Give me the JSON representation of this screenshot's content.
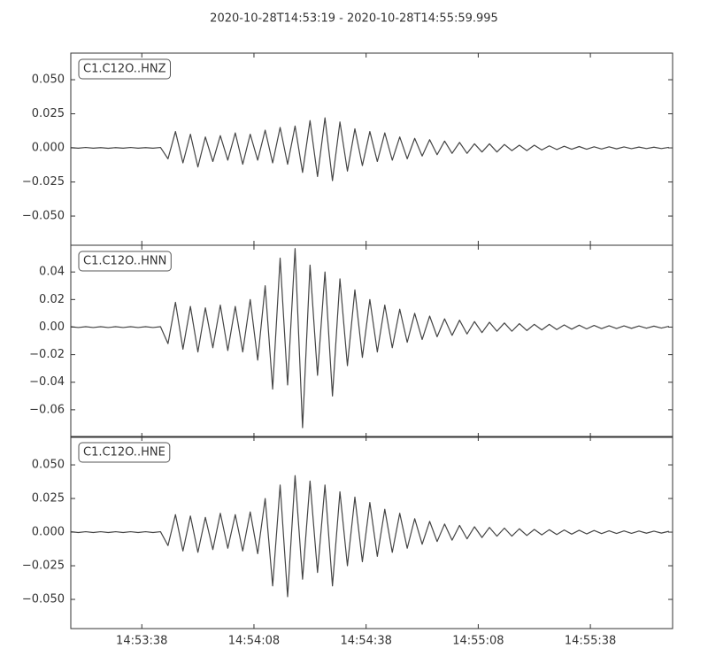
{
  "chart_data": {
    "type": "line",
    "title": "2020-10-28T14:53:19  -  2020-10-28T14:55:59.995",
    "xlim": [
      "14:53:19",
      "14:55:59.995"
    ],
    "xticks": [
      "14:53:38",
      "14:54:08",
      "14:54:38",
      "14:55:08",
      "14:55:38"
    ],
    "x": [
      "14:53:19",
      "14:53:21",
      "14:53:23",
      "14:53:25",
      "14:53:27",
      "14:53:29",
      "14:53:31",
      "14:53:33",
      "14:53:35",
      "14:53:37",
      "14:53:39",
      "14:53:41",
      "14:53:43",
      "14:53:45",
      "14:53:47",
      "14:53:49",
      "14:53:51",
      "14:53:53",
      "14:53:55",
      "14:53:57",
      "14:53:59",
      "14:54:01",
      "14:54:03",
      "14:54:05",
      "14:54:07",
      "14:54:09",
      "14:54:11",
      "14:54:13",
      "14:54:15",
      "14:54:17",
      "14:54:19",
      "14:54:21",
      "14:54:23",
      "14:54:25",
      "14:54:27",
      "14:54:29",
      "14:54:31",
      "14:54:33",
      "14:54:35",
      "14:54:37",
      "14:54:39",
      "14:54:41",
      "14:54:43",
      "14:54:45",
      "14:54:47",
      "14:54:49",
      "14:54:51",
      "14:54:53",
      "14:54:55",
      "14:54:57",
      "14:54:59",
      "14:55:01",
      "14:55:03",
      "14:55:05",
      "14:55:07",
      "14:55:09",
      "14:55:11",
      "14:55:13",
      "14:55:15",
      "14:55:17",
      "14:55:19",
      "14:55:21",
      "14:55:23",
      "14:55:25",
      "14:55:27",
      "14:55:29",
      "14:55:31",
      "14:55:33",
      "14:55:35",
      "14:55:37",
      "14:55:39",
      "14:55:41",
      "14:55:43",
      "14:55:45",
      "14:55:47",
      "14:55:49",
      "14:55:51",
      "14:55:53",
      "14:55:55",
      "14:55:57",
      "14:55:59"
    ],
    "panels": [
      {
        "label": "C1.C12O..HNZ",
        "color": "#444444",
        "ylim": [
          -0.0714,
          0.0695
        ],
        "yticks": [
          {
            "value": -0.05,
            "label": "−0.050"
          },
          {
            "value": -0.025,
            "label": "−0.025"
          },
          {
            "value": 0,
            "label": "0.000"
          },
          {
            "value": 0.025,
            "label": "0.025"
          },
          {
            "value": 0.05,
            "label": "0.050"
          }
        ],
        "values": [
          0.0002,
          -0.0002,
          0.0003,
          -0.0002,
          0.0002,
          -0.0003,
          0.0002,
          -0.0002,
          0.0003,
          -0.0002,
          0.0002,
          -0.0002,
          0.0003,
          -0.008,
          0.012,
          -0.011,
          0.01,
          -0.014,
          0.008,
          -0.01,
          0.009,
          -0.009,
          0.011,
          -0.012,
          0.01,
          -0.009,
          0.013,
          -0.011,
          0.015,
          -0.012,
          0.016,
          -0.018,
          0.02,
          -0.021,
          0.022,
          -0.024,
          0.019,
          -0.017,
          0.014,
          -0.013,
          0.012,
          -0.01,
          0.011,
          -0.009,
          0.008,
          -0.008,
          0.007,
          -0.006,
          0.006,
          -0.005,
          0.005,
          -0.004,
          0.004,
          -0.004,
          0.003,
          -0.003,
          0.003,
          -0.003,
          0.0025,
          -0.002,
          0.002,
          -0.002,
          0.002,
          -0.0015,
          0.0015,
          -0.0012,
          0.0012,
          -0.001,
          0.001,
          -0.001,
          0.0008,
          -0.0008,
          0.0008,
          -0.0007,
          0.0007,
          -0.0006,
          0.0006,
          -0.0005,
          0.0005,
          -0.0005,
          0.0004
        ]
      },
      {
        "label": "C1.C12O..HNN",
        "color": "#444444",
        "ylim": [
          -0.08,
          0.0594
        ],
        "yticks": [
          {
            "value": -0.06,
            "label": "−0.06"
          },
          {
            "value": -0.04,
            "label": "−0.04"
          },
          {
            "value": -0.02,
            "label": "−0.02"
          },
          {
            "value": 0,
            "label": "0.00"
          },
          0.02,
          0.04
        ],
        "values": [
          0.0003,
          -0.0003,
          0.0003,
          -0.0003,
          0.0003,
          -0.0003,
          0.0003,
          -0.0003,
          0.0003,
          -0.0003,
          0.0003,
          -0.0003,
          0.0003,
          -0.012,
          0.018,
          -0.016,
          0.015,
          -0.018,
          0.014,
          -0.015,
          0.016,
          -0.017,
          0.015,
          -0.018,
          0.02,
          -0.024,
          0.03,
          -0.045,
          0.05,
          -0.042,
          0.057,
          -0.073,
          0.045,
          -0.035,
          0.04,
          -0.05,
          0.035,
          -0.028,
          0.027,
          -0.022,
          0.02,
          -0.018,
          0.016,
          -0.015,
          0.013,
          -0.011,
          0.01,
          -0.009,
          0.008,
          -0.007,
          0.006,
          -0.006,
          0.005,
          -0.005,
          0.004,
          -0.004,
          0.0035,
          -0.003,
          0.003,
          -0.003,
          0.0025,
          -0.0025,
          0.002,
          -0.002,
          0.002,
          -0.0018,
          0.0016,
          -0.0015,
          0.0014,
          -0.0013,
          0.0012,
          -0.0011,
          0.001,
          -0.001,
          0.0009,
          -0.0009,
          0.0008,
          -0.0008,
          0.0007,
          -0.0007,
          0.0006
        ]
      },
      {
        "label": "C1.C12O..HNE",
        "color": "#444444",
        "ylim": [
          -0.0717,
          0.0711
        ],
        "yticks": [
          {
            "value": -0.05,
            "label": "−0.050"
          },
          {
            "value": -0.025,
            "label": "−0.025"
          },
          {
            "value": 0,
            "label": "0.000"
          },
          {
            "value": 0.025,
            "label": "0.025"
          },
          {
            "value": 0.05,
            "label": "0.050"
          }
        ],
        "values": [
          0.0003,
          -0.0003,
          0.0003,
          -0.0003,
          0.0003,
          -0.0003,
          0.0003,
          -0.0003,
          0.0003,
          -0.0003,
          0.0003,
          -0.0003,
          0.0003,
          -0.01,
          0.013,
          -0.014,
          0.012,
          -0.015,
          0.011,
          -0.013,
          0.014,
          -0.012,
          0.013,
          -0.014,
          0.015,
          -0.016,
          0.025,
          -0.04,
          0.035,
          -0.048,
          0.042,
          -0.035,
          0.038,
          -0.03,
          0.035,
          -0.04,
          0.03,
          -0.025,
          0.026,
          -0.022,
          0.022,
          -0.018,
          0.017,
          -0.015,
          0.014,
          -0.012,
          0.01,
          -0.009,
          0.008,
          -0.007,
          0.006,
          -0.006,
          0.005,
          -0.005,
          0.004,
          -0.004,
          0.0035,
          -0.003,
          0.003,
          -0.003,
          0.0025,
          -0.0025,
          0.002,
          -0.002,
          0.0018,
          -0.0018,
          0.0016,
          -0.0015,
          0.0014,
          -0.0013,
          0.0012,
          -0.0011,
          0.001,
          -0.001,
          0.0009,
          -0.0009,
          0.0008,
          -0.0008,
          0.0007,
          -0.0007,
          0.0006
        ]
      }
    ]
  }
}
